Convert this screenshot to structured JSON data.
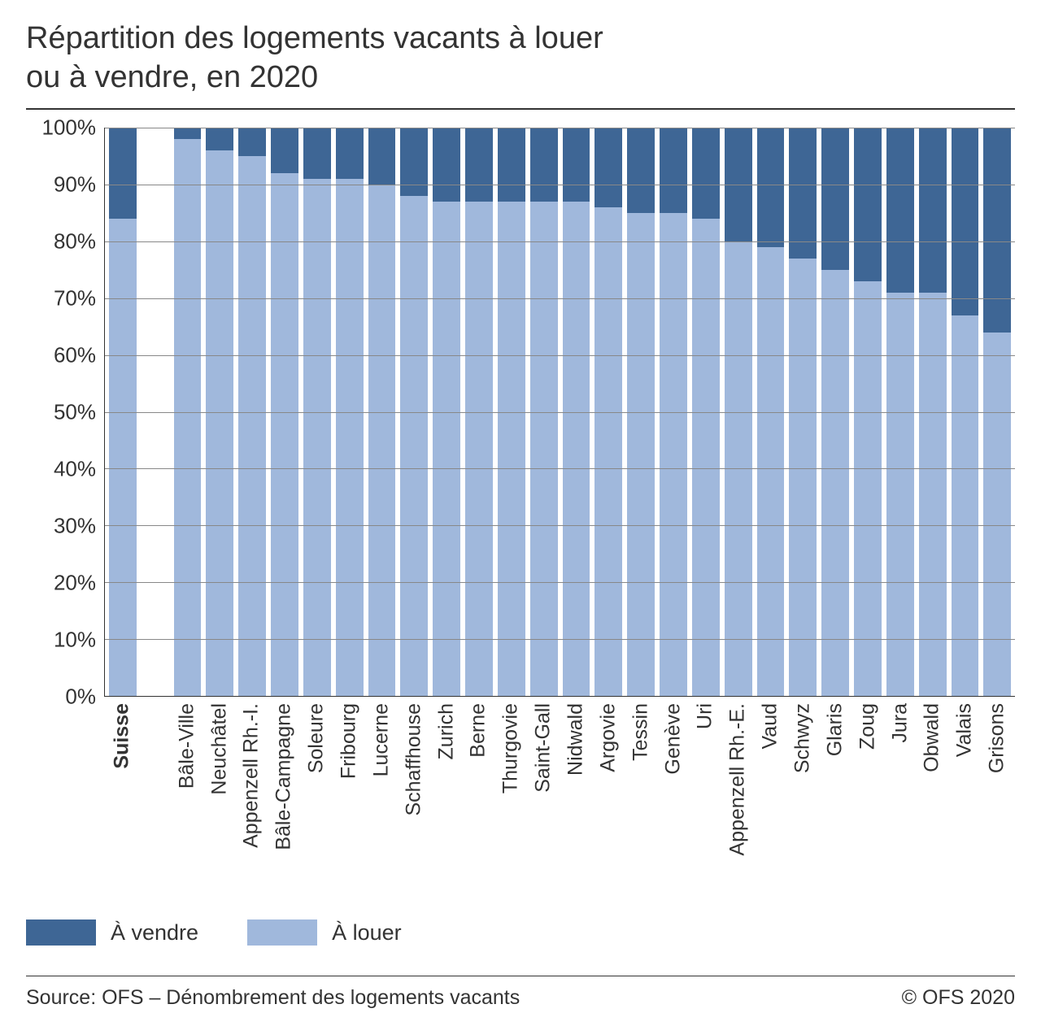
{
  "title_line1": "Répartition des logements vacants à louer",
  "title_line2": "ou à vendre, en 2020",
  "chart": {
    "type": "stacked-bar",
    "ylim": [
      0,
      100
    ],
    "ytick_step": 10,
    "ytick_suffix": "%",
    "grid_color": "#888888",
    "axis_color": "#333333",
    "background_color": "#ffffff",
    "title_fontsize": 38,
    "axis_label_fontsize": 26,
    "category_label_fontsize": 25,
    "series": [
      {
        "key": "a_vendre",
        "label": "À vendre",
        "color": "#3e6695"
      },
      {
        "key": "a_louer",
        "label": "À louer",
        "color": "#a0b8dc"
      }
    ],
    "categories": [
      {
        "label": "Suisse",
        "bold": true,
        "a_louer": 84,
        "a_vendre": 16
      },
      {
        "label": "",
        "spacer": true
      },
      {
        "label": "Bâle-Ville",
        "a_louer": 98,
        "a_vendre": 2
      },
      {
        "label": "Neuchâtel",
        "a_louer": 96,
        "a_vendre": 4
      },
      {
        "label": "Appenzell Rh.-I.",
        "a_louer": 95,
        "a_vendre": 5
      },
      {
        "label": "Bâle-Campagne",
        "a_louer": 92,
        "a_vendre": 8
      },
      {
        "label": "Soleure",
        "a_louer": 91,
        "a_vendre": 9
      },
      {
        "label": "Fribourg",
        "a_louer": 91,
        "a_vendre": 9
      },
      {
        "label": "Lucerne",
        "a_louer": 90,
        "a_vendre": 10
      },
      {
        "label": "Schaffhouse",
        "a_louer": 88,
        "a_vendre": 12
      },
      {
        "label": "Zurich",
        "a_louer": 87,
        "a_vendre": 13
      },
      {
        "label": "Berne",
        "a_louer": 87,
        "a_vendre": 13
      },
      {
        "label": "Thurgovie",
        "a_louer": 87,
        "a_vendre": 13
      },
      {
        "label": "Saint-Gall",
        "a_louer": 87,
        "a_vendre": 13
      },
      {
        "label": "Nidwald",
        "a_louer": 87,
        "a_vendre": 13
      },
      {
        "label": "Argovie",
        "a_louer": 86,
        "a_vendre": 14
      },
      {
        "label": "Tessin",
        "a_louer": 85,
        "a_vendre": 15
      },
      {
        "label": "Genève",
        "a_louer": 85,
        "a_vendre": 15
      },
      {
        "label": "Uri",
        "a_louer": 84,
        "a_vendre": 16
      },
      {
        "label": "Appenzell Rh.-E.",
        "a_louer": 80,
        "a_vendre": 20
      },
      {
        "label": "Vaud",
        "a_louer": 79,
        "a_vendre": 21
      },
      {
        "label": "Schwyz",
        "a_louer": 77,
        "a_vendre": 23
      },
      {
        "label": "Glaris",
        "a_louer": 75,
        "a_vendre": 25
      },
      {
        "label": "Zoug",
        "a_louer": 73,
        "a_vendre": 27
      },
      {
        "label": "Jura",
        "a_louer": 71,
        "a_vendre": 29
      },
      {
        "label": "Obwald",
        "a_louer": 71,
        "a_vendre": 29
      },
      {
        "label": "Valais",
        "a_louer": 67,
        "a_vendre": 33
      },
      {
        "label": "Grisons",
        "a_louer": 64,
        "a_vendre": 36
      }
    ]
  },
  "legend": {
    "items": [
      {
        "label": "À vendre",
        "color": "#3e6695"
      },
      {
        "label": "À louer",
        "color": "#a0b8dc"
      }
    ]
  },
  "footer": {
    "source": "Source: OFS – Dénombrement des logements vacants",
    "copyright": "© OFS 2020"
  }
}
